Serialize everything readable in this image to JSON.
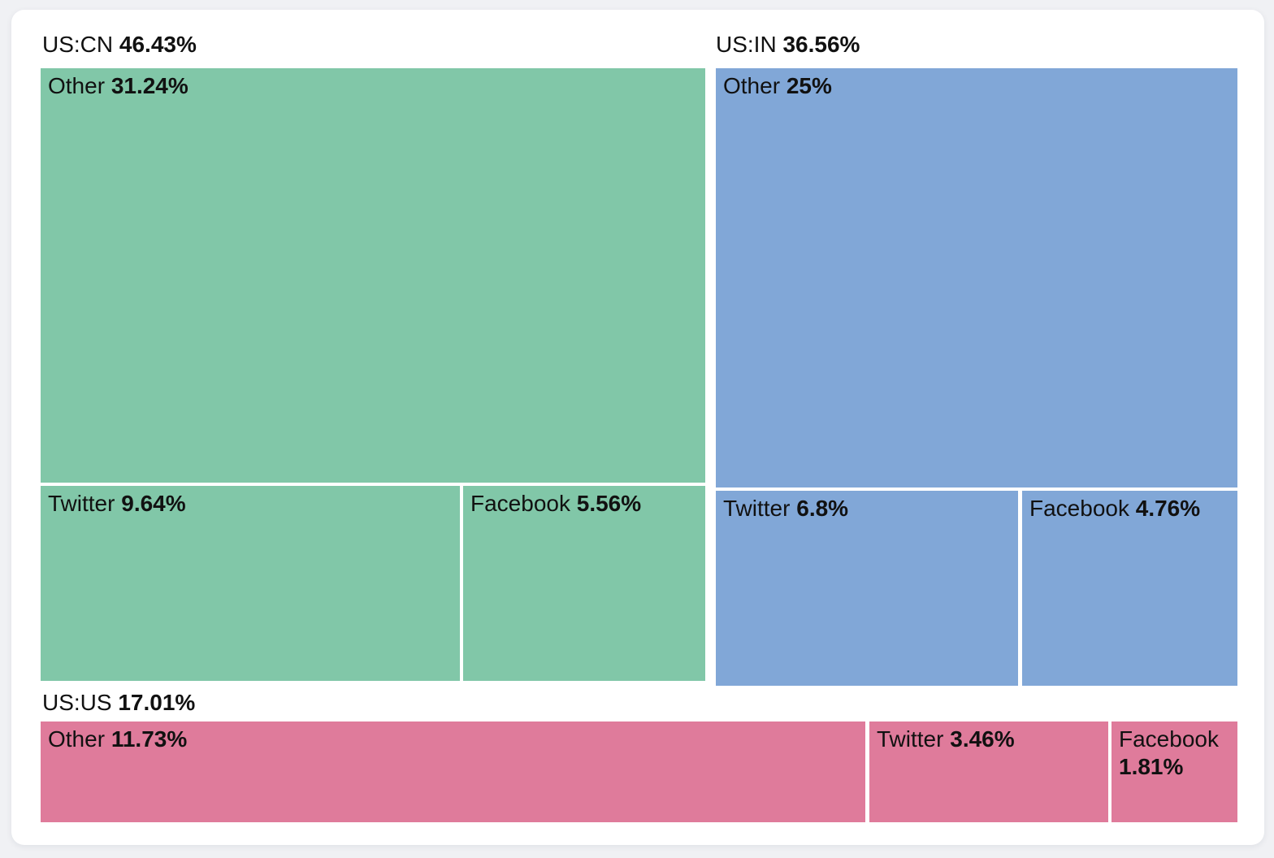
{
  "colors": {
    "page_background": "#f0f1f4",
    "card_background": "#ffffff",
    "text": "#111111",
    "group_cn": "#81c7a8",
    "group_in": "#81a7d7",
    "group_us": "#df7b9b"
  },
  "chart_data": {
    "type": "treemap",
    "unit": "%",
    "groups": [
      {
        "name": "US:CN",
        "value": 46.43,
        "value_label": "46.43%",
        "color": "#81c7a8",
        "children": [
          {
            "name": "Other",
            "value": 31.24,
            "value_label": "31.24%"
          },
          {
            "name": "Twitter",
            "value": 9.64,
            "value_label": "9.64%"
          },
          {
            "name": "Facebook",
            "value": 5.56,
            "value_label": "5.56%"
          }
        ]
      },
      {
        "name": "US:IN",
        "value": 36.56,
        "value_label": "36.56%",
        "color": "#81a7d7",
        "children": [
          {
            "name": "Other",
            "value": 25,
            "value_label": "25%"
          },
          {
            "name": "Twitter",
            "value": 6.8,
            "value_label": "6.8%"
          },
          {
            "name": "Facebook",
            "value": 4.76,
            "value_label": "4.76%"
          }
        ]
      },
      {
        "name": "US:US",
        "value": 17.01,
        "value_label": "17.01%",
        "color": "#df7b9b",
        "children": [
          {
            "name": "Other",
            "value": 11.73,
            "value_label": "11.73%"
          },
          {
            "name": "Twitter",
            "value": 3.46,
            "value_label": "3.46%"
          },
          {
            "name": "Facebook",
            "value": 1.81,
            "value_label": "1.81%"
          }
        ]
      }
    ]
  }
}
